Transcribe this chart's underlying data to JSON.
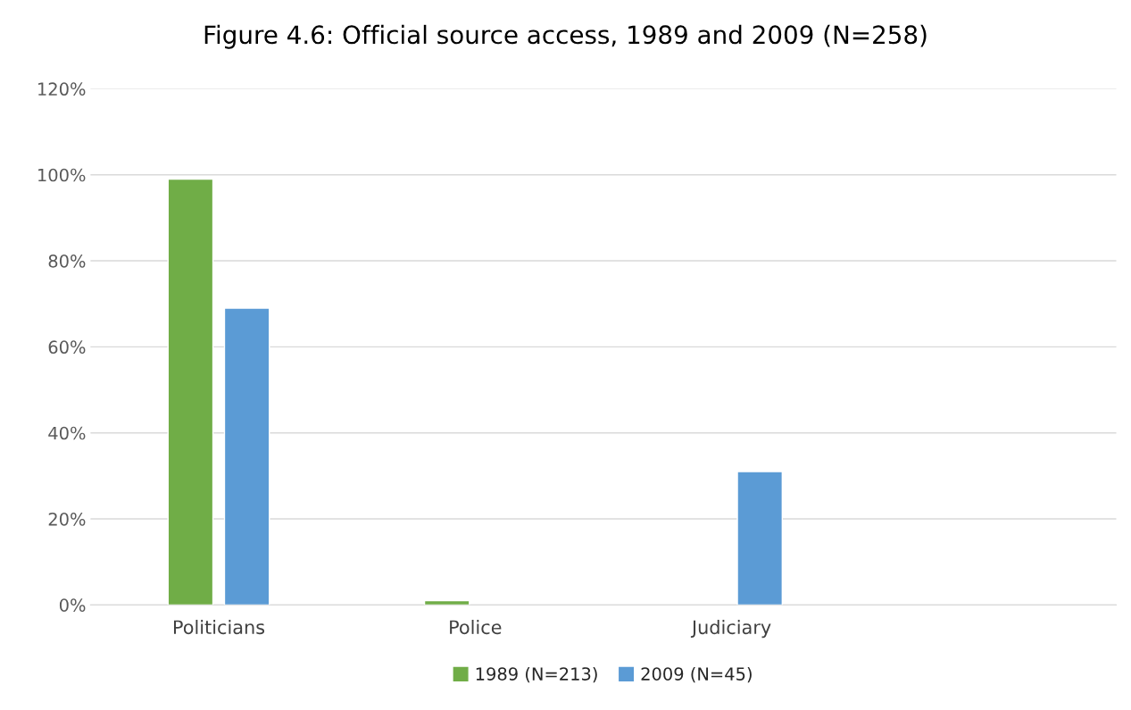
{
  "chart_data": {
    "type": "bar",
    "title": "Figure 4.6: Official source access, 1989 and 2009 (N=258)",
    "categories": [
      "Politicians",
      "Police",
      "Judiciary",
      null
    ],
    "series": [
      {
        "name": "1989 (N=213)",
        "color": "#70ad47",
        "values": [
          99,
          1,
          null,
          null
        ]
      },
      {
        "name": "2009 (N=45)",
        "color": "#5b9bd5",
        "values": [
          69,
          null,
          31,
          null
        ]
      }
    ],
    "ylim": [
      0,
      120
    ],
    "yticks": [
      {
        "value": 0,
        "label": "0%"
      },
      {
        "value": 20,
        "label": "20%"
      },
      {
        "value": 40,
        "label": "40%"
      },
      {
        "value": 60,
        "label": "60%"
      },
      {
        "value": 80,
        "label": "80%"
      },
      {
        "value": 100,
        "label": "100%"
      },
      {
        "value": 120,
        "label": "120%"
      }
    ],
    "grid": "y",
    "legend": "bottom"
  }
}
